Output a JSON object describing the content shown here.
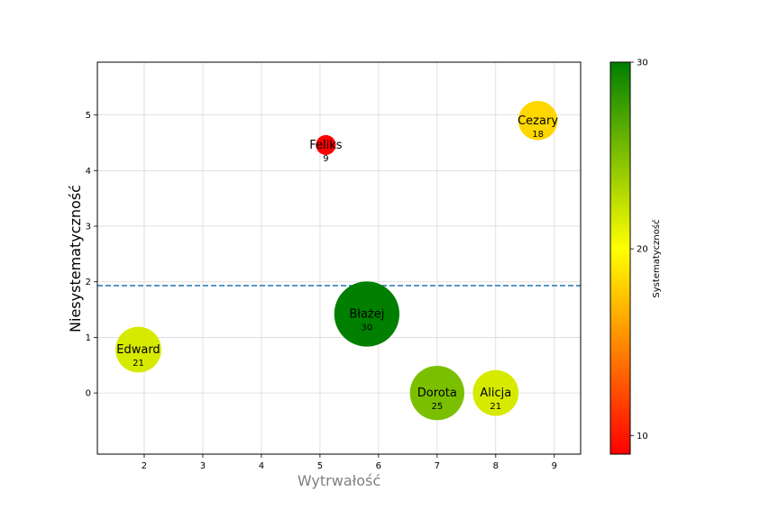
{
  "chart_data": {
    "type": "scatter",
    "xlabel": "Wytrwałość",
    "ylabel": "Niesystematyczność",
    "xlim": [
      1.2,
      9.45
    ],
    "ylim": [
      -1.1,
      5.95
    ],
    "xticks": [
      "2",
      "3",
      "4",
      "5",
      "6",
      "7",
      "8",
      "9"
    ],
    "yticks": [
      "0",
      "1",
      "2",
      "3",
      "4",
      "5"
    ],
    "grid": true,
    "hline": 1.93,
    "points": [
      {
        "name": "Alicja",
        "x": 8.0,
        "y": 0.0,
        "value": 21,
        "color": "#d6ea00"
      },
      {
        "name": "Błażej",
        "x": 5.8,
        "y": 1.42,
        "value": 30,
        "color": "#007f00"
      },
      {
        "name": "Cezary",
        "x": 8.72,
        "y": 4.9,
        "value": 18,
        "color": "#ffd700"
      },
      {
        "name": "Dorota",
        "x": 7.0,
        "y": 0.0,
        "value": 25,
        "color": "#7ac000"
      },
      {
        "name": "Edward",
        "x": 1.9,
        "y": 0.78,
        "value": 21,
        "color": "#d6ea00"
      },
      {
        "name": "Feliks",
        "x": 5.1,
        "y": 4.46,
        "value": 9,
        "color": "#ff0000"
      }
    ],
    "colorbar": {
      "label": "Systematyczność",
      "range": [
        9,
        30
      ],
      "ticks": [
        "10",
        "20",
        "30"
      ],
      "colors": [
        "#ff0000",
        "#ffff00",
        "#007f00"
      ]
    }
  }
}
